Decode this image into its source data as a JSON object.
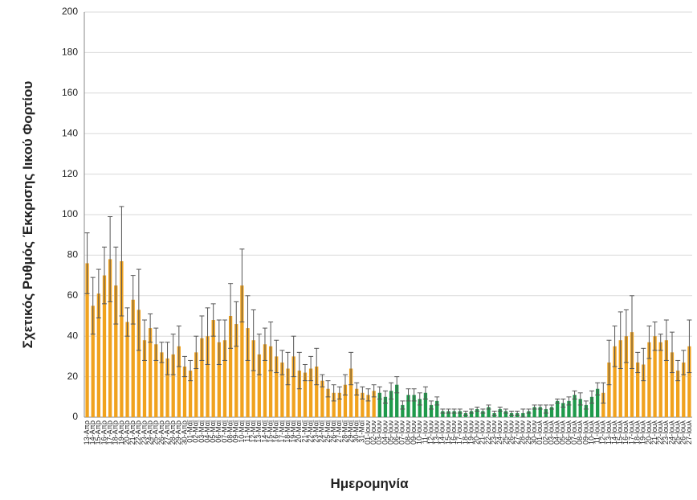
{
  "chart_data": {
    "type": "bar",
    "y_label": "Σχετικός Ρυθμός Έκκρισης Ιικού Φορτίου",
    "x_label": "Ημερομηνία",
    "categories": [
      "13-Απρ",
      "14-Απρ",
      "15-Απρ",
      "16-Απρ",
      "17-Απρ",
      "18-Απρ",
      "19-Απρ",
      "20-Απρ",
      "21-Απρ",
      "22-Απρ",
      "23-Απρ",
      "24-Απρ",
      "25-Απρ",
      "26-Απρ",
      "27-Απρ",
      "28-Απρ",
      "29-Απρ",
      "30-Απρ",
      "01-Μαϊ",
      "02-Μαϊ",
      "03-Μαϊ",
      "04-Μαϊ",
      "05-Μαϊ",
      "06-Μαϊ",
      "07-Μαϊ",
      "08-Μαϊ",
      "09-Μαϊ",
      "10-Μαϊ",
      "11-Μαϊ",
      "12-Μαϊ",
      "13-Μαϊ",
      "14-Μαϊ",
      "15-Μαϊ",
      "16-Μαϊ",
      "17-Μαϊ",
      "18-Μαϊ",
      "19-Μαϊ",
      "20-Μαϊ",
      "21-Μαϊ",
      "22-Μαϊ",
      "23-Μαϊ",
      "24-Μαϊ",
      "25-Μαϊ",
      "26-Μαϊ",
      "27-Μαϊ",
      "28-Μαϊ",
      "29-Μαϊ",
      "30-Μαϊ",
      "31-Μαϊ",
      "01-Ιουν",
      "02-Ιουν",
      "03-Ιουν",
      "04-Ιουν",
      "05-Ιουν",
      "06-Ιουν",
      "07-Ιουν",
      "08-Ιουν",
      "09-Ιουν",
      "10-Ιουν",
      "11-Ιουν",
      "12-Ιουν",
      "13-Ιουν",
      "14-Ιουν",
      "15-Ιουν",
      "16-Ιουν",
      "17-Ιουν",
      "18-Ιουν",
      "19-Ιουν",
      "20-Ιουν",
      "21-Ιουν",
      "22-Ιουν",
      "23-Ιουν",
      "24-Ιουν",
      "25-Ιουν",
      "26-Ιουν",
      "27-Ιουν",
      "28-Ιουν",
      "29-Ιουν",
      "30-Ιουν",
      "01-Ιουλ",
      "02-Ιουλ",
      "03-Ιουλ",
      "04-Ιουλ",
      "05-Ιουλ",
      "06-Ιουλ",
      "07-Ιουλ",
      "08-Ιουλ",
      "09-Ιουλ",
      "10-Ιουλ",
      "11-Ιουλ",
      "12-Ιουλ",
      "13-Ιουλ",
      "14-Ιουλ",
      "15-Ιουλ",
      "16-Ιουλ",
      "17-Ιουλ",
      "18-Ιουλ",
      "19-Ιουλ",
      "20-Ιουλ",
      "21-Ιουλ",
      "22-Ιουλ",
      "23-Ιουλ",
      "24-Ιουλ",
      "25-Ιουλ",
      "26-Ιουλ",
      "27-Ιουλ"
    ],
    "values": [
      76,
      55,
      61,
      70,
      78,
      65,
      77,
      47,
      58,
      53,
      38,
      44,
      36,
      32,
      29,
      31,
      35,
      25,
      23,
      32,
      39,
      40,
      48,
      37,
      38,
      50,
      46,
      65,
      44,
      38,
      31,
      36,
      35,
      30,
      27,
      24,
      30,
      23,
      22,
      24,
      25,
      18,
      14,
      12,
      12,
      16,
      24,
      14,
      12,
      11,
      13,
      12,
      10,
      13,
      16,
      6,
      11,
      11,
      9,
      12,
      6,
      8,
      3,
      3,
      3,
      3,
      2,
      3,
      4,
      3,
      5,
      2,
      4,
      3,
      2,
      2,
      2,
      3,
      5,
      5,
      4,
      5,
      8,
      7,
      8,
      11,
      9,
      6,
      10,
      14,
      12,
      27,
      35,
      38,
      40,
      42,
      27,
      26,
      37,
      40,
      37,
      38,
      32,
      23,
      27,
      35
    ],
    "errors": [
      15,
      14,
      12,
      14,
      21,
      19,
      27,
      7,
      12,
      20,
      10,
      7,
      8,
      5,
      8,
      10,
      10,
      5,
      5,
      8,
      11,
      14,
      8,
      11,
      10,
      16,
      11,
      18,
      16,
      15,
      10,
      8,
      12,
      8,
      6,
      8,
      10,
      9,
      4,
      6,
      9,
      3,
      4,
      4,
      3,
      5,
      8,
      3,
      3,
      3,
      3,
      3,
      3,
      4,
      4,
      2,
      3,
      3,
      3,
      3,
      2,
      2,
      1,
      1,
      1,
      1,
      1,
      1,
      1,
      1,
      1,
      1,
      1,
      1,
      1,
      1,
      2,
      1,
      1,
      1,
      2,
      1,
      1,
      2,
      2,
      2,
      3,
      2,
      3,
      3,
      5,
      11,
      10,
      14,
      13,
      18,
      5,
      8,
      8,
      7,
      4,
      10,
      10,
      5,
      6,
      13
    ],
    "colors": [
      "#f0a21e",
      "#f0a21e",
      "#f0a21e",
      "#f0a21e",
      "#f0a21e",
      "#f0a21e",
      "#f0a21e",
      "#f0a21e",
      "#f0a21e",
      "#f0a21e",
      "#f0a21e",
      "#f0a21e",
      "#f0a21e",
      "#f0a21e",
      "#f0a21e",
      "#f0a21e",
      "#f0a21e",
      "#f0a21e",
      "#f0a21e",
      "#f0a21e",
      "#f0a21e",
      "#f0a21e",
      "#f0a21e",
      "#f0a21e",
      "#f0a21e",
      "#f0a21e",
      "#f0a21e",
      "#f0a21e",
      "#f0a21e",
      "#f0a21e",
      "#f0a21e",
      "#f0a21e",
      "#f0a21e",
      "#f0a21e",
      "#f0a21e",
      "#f0a21e",
      "#f0a21e",
      "#f0a21e",
      "#f0a21e",
      "#f0a21e",
      "#f0a21e",
      "#f0a21e",
      "#f0a21e",
      "#f0a21e",
      "#f0a21e",
      "#f0a21e",
      "#f0a21e",
      "#f0a21e",
      "#f0a21e",
      "#f0a21e",
      "#f0a21e",
      "#1f9a4b",
      "#1f9a4b",
      "#1f9a4b",
      "#1f9a4b",
      "#1f9a4b",
      "#1f9a4b",
      "#1f9a4b",
      "#1f9a4b",
      "#1f9a4b",
      "#1f9a4b",
      "#1f9a4b",
      "#1f9a4b",
      "#1f9a4b",
      "#1f9a4b",
      "#1f9a4b",
      "#1f9a4b",
      "#1f9a4b",
      "#1f9a4b",
      "#1f9a4b",
      "#1f9a4b",
      "#1f9a4b",
      "#1f9a4b",
      "#1f9a4b",
      "#1f9a4b",
      "#1f9a4b",
      "#1f9a4b",
      "#1f9a4b",
      "#1f9a4b",
      "#1f9a4b",
      "#1f9a4b",
      "#1f9a4b",
      "#1f9a4b",
      "#1f9a4b",
      "#1f9a4b",
      "#1f9a4b",
      "#1f9a4b",
      "#1f9a4b",
      "#1f9a4b",
      "#1f9a4b",
      "#f0a21e",
      "#f0a21e",
      "#f0a21e",
      "#f0a21e",
      "#f0a21e",
      "#f0a21e",
      "#f0a21e",
      "#f0a21e",
      "#f0a21e",
      "#f0a21e",
      "#f0a21e",
      "#f0a21e",
      "#f0a21e",
      "#f0a21e",
      "#f0a21e",
      "#f0a21e"
    ],
    "ylim": [
      0,
      200
    ],
    "yticks": [
      0,
      20,
      40,
      60,
      80,
      100,
      120,
      140,
      160,
      180,
      200
    ],
    "grid": true
  }
}
